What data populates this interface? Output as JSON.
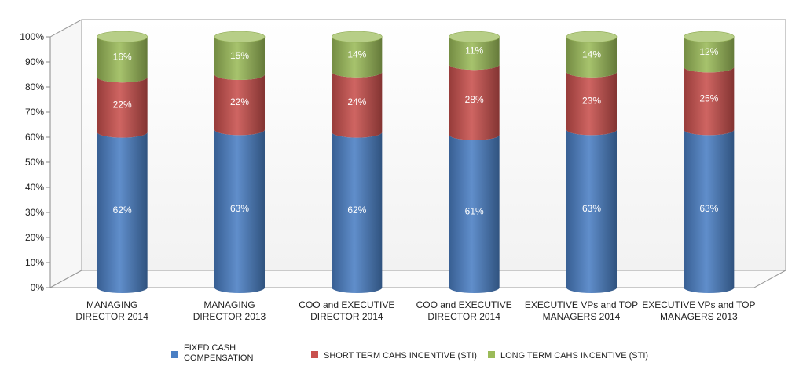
{
  "chart_data": {
    "type": "bar",
    "stacked": true,
    "style": "3d-cylinder",
    "categories": [
      [
        "MANAGING",
        "DIRECTOR 2014"
      ],
      [
        "MANAGING",
        "DIRECTOR 2013"
      ],
      [
        "COO and EXECUTIVE",
        "DIRECTOR 2014"
      ],
      [
        "COO and EXECUTIVE",
        "DIRECTOR 2014"
      ],
      [
        "EXECUTIVE VPs and TOP",
        "MANAGERS 2014"
      ],
      [
        "EXECUTIVE VPs and TOP",
        "MANAGERS 2013"
      ]
    ],
    "series": [
      {
        "name": [
          "FIXED CASH",
          "COMPENSATION"
        ],
        "color": "#4a7fc4",
        "values": [
          62,
          63,
          62,
          61,
          63,
          63
        ],
        "labels": [
          "62%",
          "63%",
          "62%",
          "61%",
          "63%",
          "63%"
        ]
      },
      {
        "name": [
          "SHORT TERM CAHS INCENTIVE (STI)"
        ],
        "color": "#c9504d",
        "values": [
          22,
          22,
          24,
          28,
          23,
          25
        ],
        "labels": [
          "22%",
          "22%",
          "24%",
          "28%",
          "23%",
          "25%"
        ]
      },
      {
        "name": [
          "LONG TERM CAHS INCENTIVE (STI)"
        ],
        "color": "#9bbb59",
        "values": [
          16,
          15,
          14,
          11,
          14,
          12
        ],
        "labels": [
          "16%",
          "15%",
          "14%",
          "11%",
          "14%",
          "12%"
        ]
      }
    ],
    "ylim": [
      0,
      100
    ],
    "yticks": [
      "0%",
      "10%",
      "20%",
      "30%",
      "40%",
      "50%",
      "60%",
      "70%",
      "80%",
      "90%",
      "100%"
    ],
    "grid": false,
    "legend_position": "bottom"
  }
}
